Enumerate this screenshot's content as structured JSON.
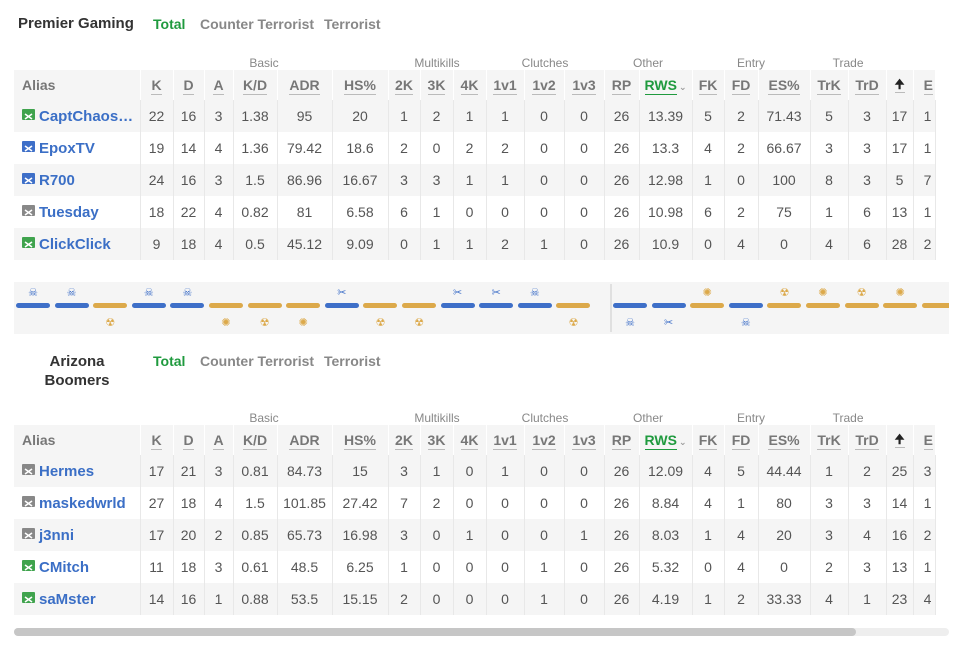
{
  "columns": {
    "groups": [
      "Basic",
      "Multikills",
      "Clutches",
      "Other",
      "Entry",
      "Trade"
    ],
    "alias": "Alias",
    "headers": [
      "K",
      "D",
      "A",
      "K/D",
      "ADR",
      "HS%",
      "2K",
      "3K",
      "4K",
      "1v1",
      "1v2",
      "1v3",
      "RP",
      "RWS",
      "FK",
      "FD",
      "ES%",
      "TrK",
      "TrD",
      "🠉",
      "E"
    ],
    "sort_caret": "⌄"
  },
  "tabs": [
    "Total",
    "Counter Terrorist",
    "Terrorist"
  ],
  "teams": [
    {
      "name": "Premier Gaming",
      "active_tab": "Total",
      "players": [
        {
          "alias": "CaptChaos…",
          "side_color": "#3fa34d",
          "stats": [
            "22",
            "16",
            "3",
            "1.38",
            "95",
            "20",
            "1",
            "2",
            "1",
            "1",
            "0",
            "0",
            "26",
            "13.39",
            "5",
            "2",
            "71.43",
            "5",
            "3",
            "17",
            "1"
          ]
        },
        {
          "alias": "EpoxTV",
          "side_color": "#3e6fc8",
          "stats": [
            "19",
            "14",
            "4",
            "1.36",
            "79.42",
            "18.6",
            "2",
            "0",
            "2",
            "2",
            "0",
            "0",
            "26",
            "13.3",
            "4",
            "2",
            "66.67",
            "3",
            "3",
            "17",
            "1"
          ]
        },
        {
          "alias": "R700",
          "side_color": "#3e6fc8",
          "stats": [
            "24",
            "16",
            "3",
            "1.5",
            "86.96",
            "16.67",
            "3",
            "3",
            "1",
            "1",
            "0",
            "0",
            "26",
            "12.98",
            "1",
            "0",
            "100",
            "8",
            "3",
            "5",
            "7"
          ]
        },
        {
          "alias": "Tuesday",
          "side_color": "#888888",
          "stats": [
            "18",
            "22",
            "4",
            "0.82",
            "81",
            "6.58",
            "6",
            "1",
            "0",
            "0",
            "0",
            "0",
            "26",
            "10.98",
            "6",
            "2",
            "75",
            "1",
            "6",
            "13",
            "1"
          ]
        },
        {
          "alias": "ClickClick",
          "side_color": "#3fa34d",
          "stats": [
            "9",
            "18",
            "4",
            "0.5",
            "45.12",
            "9.09",
            "0",
            "1",
            "1",
            "2",
            "1",
            "0",
            "26",
            "10.9",
            "0",
            "4",
            "0",
            "4",
            "6",
            "28",
            "2"
          ]
        }
      ]
    },
    {
      "name": "Arizona Boomers",
      "active_tab": "Total",
      "players": [
        {
          "alias": "Hermes",
          "side_color": "#888888",
          "stats": [
            "17",
            "21",
            "3",
            "0.81",
            "84.73",
            "15",
            "3",
            "1",
            "0",
            "1",
            "0",
            "0",
            "26",
            "12.09",
            "4",
            "5",
            "44.44",
            "1",
            "2",
            "25",
            "3"
          ]
        },
        {
          "alias": "maskedwrld",
          "side_color": "#888888",
          "stats": [
            "27",
            "18",
            "4",
            "1.5",
            "101.85",
            "27.42",
            "7",
            "2",
            "0",
            "0",
            "0",
            "0",
            "26",
            "8.84",
            "4",
            "1",
            "80",
            "3",
            "3",
            "14",
            "1"
          ]
        },
        {
          "alias": "j3nni",
          "side_color": "#888888",
          "stats": [
            "17",
            "20",
            "2",
            "0.85",
            "65.73",
            "16.98",
            "3",
            "0",
            "1",
            "0",
            "0",
            "1",
            "26",
            "8.03",
            "1",
            "4",
            "20",
            "3",
            "4",
            "16",
            "2"
          ]
        },
        {
          "alias": "CMitch",
          "side_color": "#3fa34d",
          "stats": [
            "11",
            "18",
            "3",
            "0.61",
            "48.5",
            "6.25",
            "1",
            "0",
            "0",
            "0",
            "1",
            "0",
            "26",
            "5.32",
            "0",
            "4",
            "0",
            "2",
            "3",
            "13",
            "1"
          ]
        },
        {
          "alias": "saMster",
          "side_color": "#3fa34d",
          "stats": [
            "14",
            "16",
            "1",
            "0.88",
            "53.5",
            "15.15",
            "2",
            "0",
            "0",
            "0",
            "1",
            "0",
            "26",
            "4.19",
            "1",
            "2",
            "33.33",
            "4",
            "1",
            "23",
            "4"
          ]
        }
      ]
    }
  ],
  "round_history": {
    "colors": {
      "ct": "#3e6fc8",
      "t": "#dca94a"
    },
    "rounds": [
      {
        "winner": "ct",
        "icon": "skull-icon"
      },
      {
        "winner": "ct",
        "icon": "skull-icon"
      },
      {
        "winner": "t",
        "icon": "bomb-icon"
      },
      {
        "winner": "ct",
        "icon": "skull-icon"
      },
      {
        "winner": "ct",
        "icon": "skull-icon"
      },
      {
        "winner": "t",
        "icon": "explosion-icon"
      },
      {
        "winner": "t",
        "icon": "bomb-icon"
      },
      {
        "winner": "t",
        "icon": "explosion-icon"
      },
      {
        "winner": "ct",
        "icon": "defuse-icon"
      },
      {
        "winner": "t",
        "icon": "bomb-icon"
      },
      {
        "winner": "t",
        "icon": "bomb-icon"
      },
      {
        "winner": "ct",
        "icon": "defuse-icon"
      },
      {
        "winner": "ct",
        "icon": "defuse-icon"
      },
      {
        "winner": "ct",
        "icon": "skull-icon"
      },
      {
        "winner": "t",
        "icon": "bomb-icon"
      },
      {
        "winner": "ct",
        "icon": "skull-icon"
      },
      {
        "winner": "ct",
        "icon": "defuse-icon"
      },
      {
        "winner": "t",
        "icon": "explosion-icon"
      },
      {
        "winner": "ct",
        "icon": "skull-icon"
      },
      {
        "winner": "t",
        "icon": "bomb-icon"
      },
      {
        "winner": "t",
        "icon": "explosion-icon"
      },
      {
        "winner": "t",
        "icon": "bomb-icon"
      },
      {
        "winner": "t",
        "icon": "explosion-icon"
      },
      {
        "winner": "t",
        "icon": ""
      }
    ]
  },
  "scrollbar": {
    "visible_fraction": 0.9
  }
}
